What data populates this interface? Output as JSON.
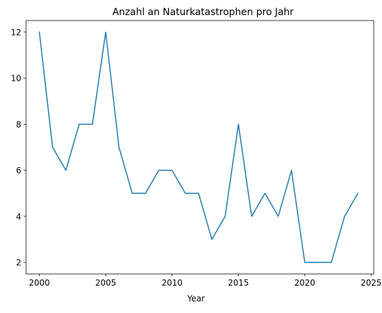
{
  "chart_data": {
    "type": "line",
    "title": "Anzahl an Naturkatastrophen pro Jahr",
    "xlabel": "Year",
    "ylabel": "",
    "xlim": [
      1999,
      2025.2
    ],
    "ylim": [
      1.5,
      12.5
    ],
    "xticks": [
      2000,
      2005,
      2010,
      2015,
      2020,
      2025
    ],
    "yticks": [
      2,
      4,
      6,
      8,
      10,
      12
    ],
    "grid": false,
    "legend": "none",
    "series": [
      {
        "color": "#1f77b4",
        "x": [
          2000,
          2001,
          2002,
          2003,
          2004,
          2005,
          2006,
          2007,
          2008,
          2009,
          2010,
          2011,
          2012,
          2013,
          2014,
          2015,
          2016,
          2017,
          2018,
          2019,
          2020,
          2021,
          2022,
          2023,
          2024
        ],
        "values": [
          12,
          7,
          6,
          8,
          8,
          12,
          7,
          5,
          5,
          6,
          6,
          5,
          5,
          3,
          4,
          8,
          4,
          5,
          4,
          6,
          2,
          2,
          2,
          4,
          5
        ]
      }
    ]
  }
}
